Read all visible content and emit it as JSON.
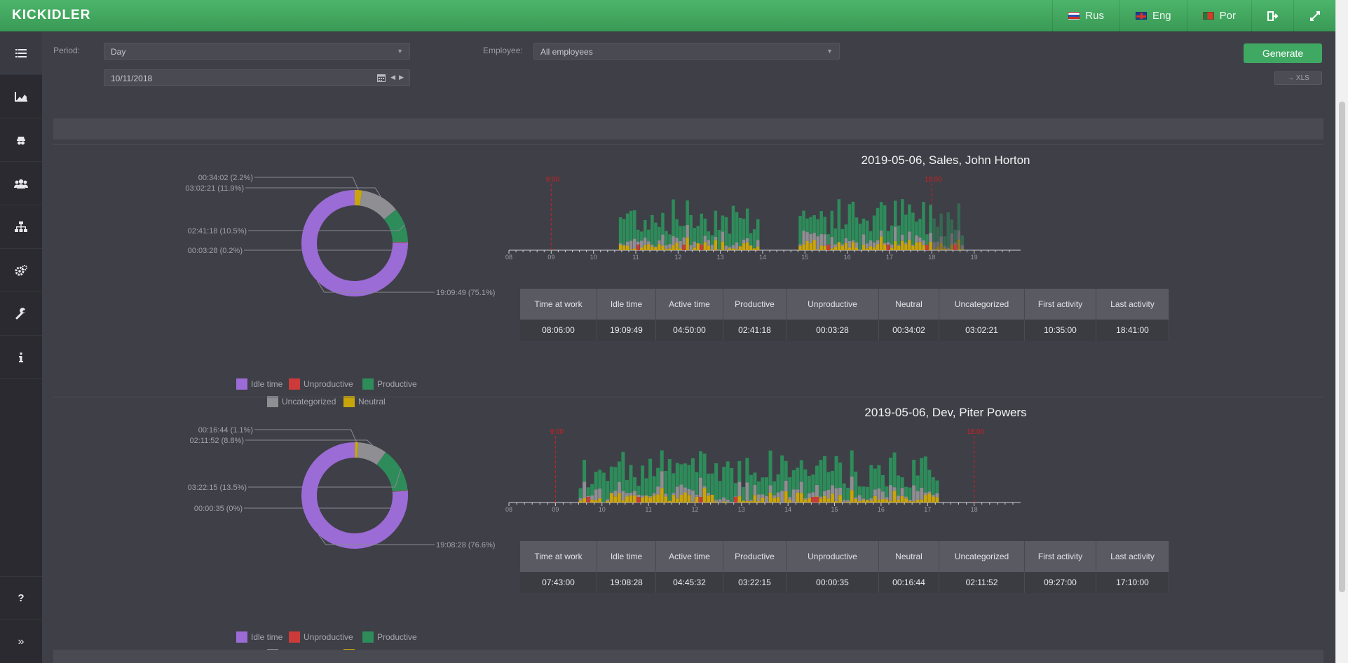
{
  "app": {
    "logo": "KICKIDLER"
  },
  "topnav": {
    "languages": [
      {
        "label": "Rus",
        "flag": "ru"
      },
      {
        "label": "Eng",
        "flag": "en"
      },
      {
        "label": "Por",
        "flag": "pt"
      }
    ],
    "icons": [
      "logout-icon",
      "fullscreen-icon"
    ]
  },
  "sidebar": {
    "items": [
      "list-icon",
      "chart-icon",
      "spy-icon",
      "users-icon",
      "hierarchy-icon",
      "settings-icon",
      "wrench-icon",
      "info-icon"
    ],
    "bottom": [
      "help-icon",
      "expand-icon"
    ]
  },
  "filters": {
    "period_label": "Period:",
    "period_value": "Day",
    "employee_label": "Employee:",
    "employee_value": "All employees",
    "date_value": "10/11/2018",
    "generate_label": "Generate",
    "xls_label": "→ XLS"
  },
  "colors": {
    "idle": "#9b6bd6",
    "unproductive": "#cc3a3a",
    "productive": "#2e8b5a",
    "uncategorized": "#8e8e93",
    "neutral": "#c9a50c",
    "workline": "#cc2222"
  },
  "legend": [
    "Idle time",
    "Unproductive",
    "Productive",
    "Uncategorized",
    "Neutral"
  ],
  "table_headers": [
    "Time at work",
    "Idle time",
    "Active time",
    "Productive",
    "Unproductive",
    "Neutral",
    "Uncategorized",
    "First activity",
    "Last activity"
  ],
  "reports": [
    {
      "title": "2019-05-06, Sales, John Horton",
      "pie": [
        {
          "category": "Neutral",
          "label": "00:34:02 (2.2%)",
          "pct": 2.2
        },
        {
          "category": "Uncategorized",
          "label": "03:02:21 (11.9%)",
          "pct": 11.9
        },
        {
          "category": "Productive",
          "label": "02:41:18 (10.5%)",
          "pct": 10.5
        },
        {
          "category": "Unproductive",
          "label": "00:03:28 (0.2%)",
          "pct": 0.2
        },
        {
          "category": "Idle time",
          "label": "19:09:49 (75.1%)",
          "pct": 75.1
        }
      ],
      "timeline": {
        "ticks": [
          "08",
          "09",
          "10",
          "11",
          "12",
          "13",
          "14",
          "15",
          "16",
          "17",
          "18",
          "19"
        ],
        "start_line": "9:00",
        "end_line": "18:00"
      },
      "stats": [
        "08:06:00",
        "19:09:49",
        "04:50:00",
        "02:41:18",
        "00:03:28",
        "00:34:02",
        "03:02:21",
        "10:35:00",
        "18:41:00"
      ]
    },
    {
      "title": "2019-05-06, Dev, Piter Powers",
      "pie": [
        {
          "category": "Neutral",
          "label": "00:16:44 (1.1%)",
          "pct": 1.1
        },
        {
          "category": "Uncategorized",
          "label": "02:11:52 (8.8%)",
          "pct": 8.8
        },
        {
          "category": "Productive",
          "label": "03:22:15 (13.5%)",
          "pct": 13.5
        },
        {
          "category": "Unproductive",
          "label": "00:00:35 (0%)",
          "pct": 0.04
        },
        {
          "category": "Idle time",
          "label": "19:08:28 (76.6%)",
          "pct": 76.6
        }
      ],
      "timeline": {
        "ticks": [
          "08",
          "09",
          "10",
          "11",
          "12",
          "13",
          "14",
          "15",
          "16",
          "17",
          "18"
        ],
        "start_line": "9:00",
        "end_line": "18:00"
      },
      "stats": [
        "07:43:00",
        "19:08:28",
        "04:45:32",
        "03:22:15",
        "00:00:35",
        "00:16:44",
        "02:11:52",
        "09:27:00",
        "17:10:00"
      ]
    }
  ]
}
